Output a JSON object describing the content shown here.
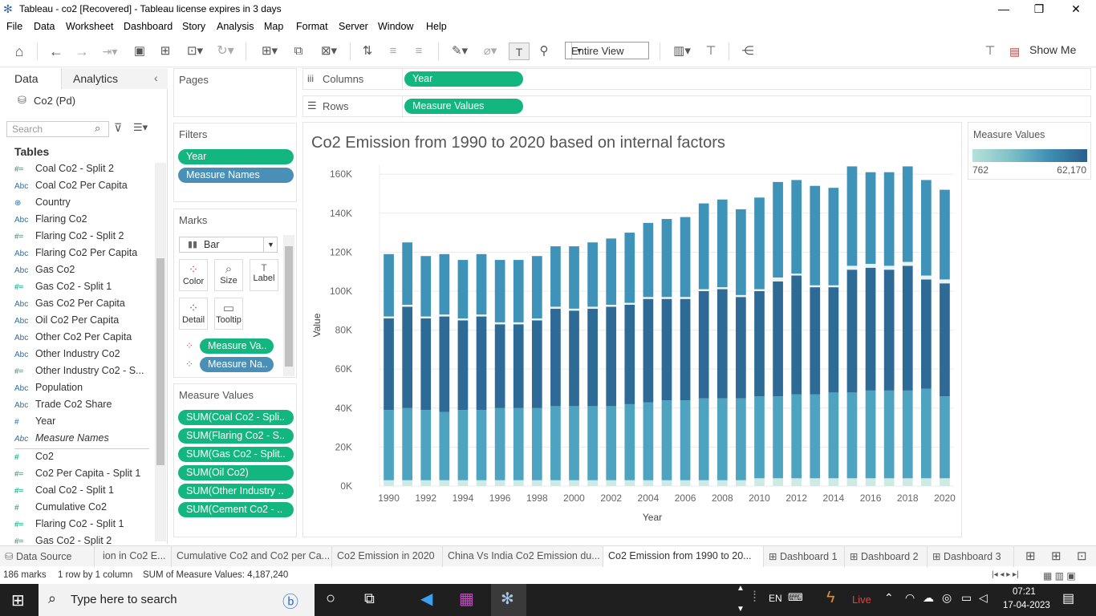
{
  "window": {
    "title": "Tableau - co2 [Recovered] - Tableau license expires in 3 days",
    "minimize": "—",
    "restore": "❐",
    "close": "✕"
  },
  "menu": [
    "File",
    "Data",
    "Worksheet",
    "Dashboard",
    "Story",
    "Analysis",
    "Map",
    "Format",
    "Server",
    "Window",
    "Help"
  ],
  "toolbar": {
    "view_select": "Entire View",
    "show_me": "Show Me"
  },
  "data_pane": {
    "tabs": [
      "Data",
      "Analytics"
    ],
    "source": "Co2 (Pd)",
    "search_placeholder": "Search",
    "tables_heading": "Tables",
    "fields": [
      {
        "type": "#=",
        "name": "Coal Co2 - Split 2",
        "measure": true
      },
      {
        "type": "Abc",
        "name": "Coal Co2 Per Capita",
        "measure": false
      },
      {
        "type": "⊕",
        "name": "Country",
        "measure": false
      },
      {
        "type": "Abc",
        "name": "Flaring Co2",
        "measure": false
      },
      {
        "type": "#=",
        "name": "Flaring Co2 - Split 2",
        "measure": true
      },
      {
        "type": "Abc",
        "name": "Flaring Co2 Per Capita",
        "measure": false
      },
      {
        "type": "Abc",
        "name": "Gas Co2",
        "measure": false
      },
      {
        "type": "#=",
        "name": "Gas Co2 - Split 1",
        "measure": true
      },
      {
        "type": "Abc",
        "name": "Gas Co2 Per Capita",
        "measure": false
      },
      {
        "type": "Abc",
        "name": "Oil Co2 Per Capita",
        "measure": false
      },
      {
        "type": "Abc",
        "name": "Other Co2 Per Capita",
        "measure": false
      },
      {
        "type": "Abc",
        "name": "Other Industry Co2",
        "measure": false
      },
      {
        "type": "#=",
        "name": "Other Industry Co2 - S...",
        "measure": true
      },
      {
        "type": "Abc",
        "name": "Population",
        "measure": false
      },
      {
        "type": "Abc",
        "name": "Trade Co2 Share",
        "measure": false
      },
      {
        "type": "#",
        "name": "Year",
        "measure": false
      },
      {
        "type": "Abc",
        "name": "Measure Names",
        "measure": false,
        "italic": true
      },
      {
        "type": "#",
        "name": "Co2",
        "measure": true
      },
      {
        "type": "#=",
        "name": "Co2 Per Capita - Split 1",
        "measure": true
      },
      {
        "type": "#=",
        "name": "Coal Co2 - Split 1",
        "measure": true
      },
      {
        "type": "#",
        "name": "Cumulative Co2",
        "measure": true
      },
      {
        "type": "#=",
        "name": "Flaring Co2 - Split 1",
        "measure": true
      },
      {
        "type": "#=",
        "name": "Gas Co2 - Split 2",
        "measure": true
      }
    ]
  },
  "pages": {
    "title": "Pages"
  },
  "filters": {
    "title": "Filters",
    "pills": [
      "Year",
      "Measure Names"
    ]
  },
  "marks": {
    "title": "Marks",
    "type": "Bar",
    "buttons": [
      "Color",
      "Size",
      "Label",
      "Detail",
      "Tooltip"
    ],
    "pills": [
      "Measure Va..",
      "Measure Na.."
    ]
  },
  "measure_values_card": {
    "title": "Measure Values",
    "pills": [
      "SUM(Coal Co2 - Spli..",
      "SUM(Flaring Co2 - S..",
      "SUM(Gas Co2 - Split..",
      "SUM(Oil Co2)",
      "SUM(Other Industry ..",
      "SUM(Cement Co2 - .."
    ]
  },
  "shelves": {
    "columns_label": "Columns",
    "columns_pill": "Year",
    "rows_label": "Rows",
    "rows_pill": "Measure Values"
  },
  "legend": {
    "title": "Measure Values",
    "min": "762",
    "max": "62,170"
  },
  "chart_data": {
    "type": "bar",
    "stacked": true,
    "title": "Co2 Emission from 1990 to 2020 based on internal factors",
    "xlabel": "Year",
    "ylabel": "Value",
    "ylim": [
      0,
      165000
    ],
    "yticks": [
      "0K",
      "20K",
      "40K",
      "60K",
      "80K",
      "100K",
      "120K",
      "140K",
      "160K"
    ],
    "xticks": [
      "1990",
      "1992",
      "1994",
      "1996",
      "1998",
      "2000",
      "2002",
      "2004",
      "2006",
      "2008",
      "2010",
      "2012",
      "2014",
      "2016",
      "2018",
      "2020"
    ],
    "categories": [
      "1990",
      "1991",
      "1992",
      "1993",
      "1994",
      "1995",
      "1996",
      "1997",
      "1998",
      "1999",
      "2000",
      "2001",
      "2002",
      "2003",
      "2004",
      "2005",
      "2006",
      "2007",
      "2008",
      "2009",
      "2010",
      "2011",
      "2012",
      "2013",
      "2014",
      "2015",
      "2016",
      "2017",
      "2018",
      "2019",
      "2020"
    ],
    "series": [
      {
        "values": [
          3000,
          3000,
          3000,
          3000,
          3000,
          3000,
          3000,
          3000,
          3000,
          3000,
          3000,
          3000,
          3000,
          3000,
          3000,
          3000,
          3000,
          3000,
          3000,
          3000,
          4000,
          4000,
          4000,
          4000,
          4000,
          4000,
          4000,
          4000,
          4000,
          4000,
          4000
        ]
      },
      {
        "values": [
          36000,
          37000,
          36000,
          35000,
          36000,
          36000,
          37000,
          37000,
          37000,
          38000,
          38000,
          38000,
          38000,
          39000,
          40000,
          41000,
          41000,
          42000,
          42000,
          42000,
          42000,
          42000,
          43000,
          43000,
          44000,
          44000,
          45000,
          45000,
          45000,
          46000,
          42000
        ]
      },
      {
        "values": [
          47000,
          52000,
          47000,
          49000,
          46000,
          48000,
          43000,
          43000,
          45000,
          50000,
          49000,
          50000,
          51000,
          51000,
          53000,
          52000,
          52000,
          55000,
          56000,
          52000,
          54000,
          59000,
          61000,
          55000,
          54000,
          63000,
          63000,
          62000,
          64000,
          56000,
          58000
        ]
      },
      {
        "values": [
          1000,
          1000,
          1000,
          1000,
          1000,
          1000,
          1000,
          1000,
          1000,
          1000,
          1000,
          1000,
          1000,
          1000,
          1000,
          1000,
          1000,
          1000,
          1000,
          1000,
          1000,
          2000,
          1000,
          1000,
          1000,
          2000,
          2000,
          2000,
          2000,
          2000,
          2000
        ]
      },
      {
        "values": [
          32000,
          32000,
          31000,
          31000,
          30000,
          31000,
          32000,
          32000,
          32000,
          31000,
          32000,
          33000,
          34000,
          36000,
          38000,
          40000,
          41000,
          44000,
          45000,
          44000,
          47000,
          49000,
          48000,
          51000,
          50000,
          51000,
          47000,
          48000,
          49000,
          49000,
          46000
        ]
      }
    ],
    "colors": [
      "#cdeae4",
      "#4ea4c0",
      "#2e6a96",
      "#e8f2f0",
      "#3f93b8"
    ]
  },
  "sheet_tabs": [
    {
      "label": "Data Source",
      "active": false
    },
    {
      "label": "ion in Co2 E...",
      "active": false
    },
    {
      "label": "Cumulative Co2 and Co2 per Ca...",
      "active": false
    },
    {
      "label": "Co2 Emission in 2020",
      "active": false
    },
    {
      "label": "China Vs India Co2 Emission du...",
      "active": false
    },
    {
      "label": "Co2 Emission from 1990 to 20...",
      "active": true
    },
    {
      "label": "Dashboard 1",
      "active": false
    },
    {
      "label": "Dashboard 2",
      "active": false
    },
    {
      "label": "Dashboard 3",
      "active": false
    }
  ],
  "status": {
    "marks": "186 marks",
    "dims": "1 row by 1 column",
    "sum": "SUM of Measure Values: 4,187,240"
  },
  "taskbar": {
    "search": "Type here to search",
    "lang": "EN",
    "live": "Live",
    "time": "07:21",
    "date": "17-04-2023"
  }
}
